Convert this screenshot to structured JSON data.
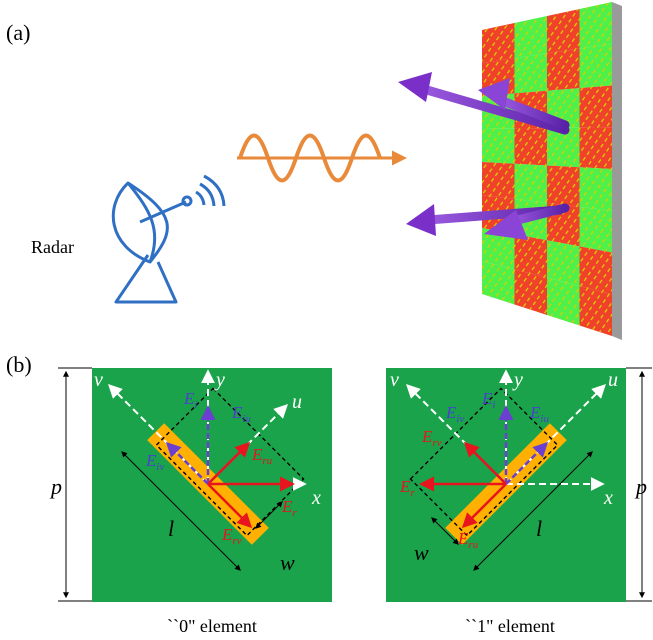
{
  "figure": {
    "panel_a_label": "(a)",
    "panel_b_label": "(b)",
    "radar_label": "Radar",
    "colors": {
      "green": "#1aa34a",
      "light_green": "#4ff04a",
      "red": "#f0422a",
      "orange": "#ffb000",
      "wave": "#e88a3a",
      "arrow_purple": "#7b2fc9",
      "radar_blue": "#2f6fc4",
      "field_red": "#e8141e",
      "field_purple": "#6b3fd0"
    },
    "icons": [
      "radar-dish-icon",
      "wave-icon",
      "reflected-beam-icon"
    ]
  },
  "element0": {
    "caption": "``0\" element",
    "labels": {
      "v": "v",
      "y": "y",
      "u": "u",
      "x": "x",
      "p": "p",
      "l": "l",
      "w": "w",
      "Ei": "E",
      "Ei_sub": "i",
      "Eiu": "E",
      "Eiu_sub": "iu",
      "Eiv": "E",
      "Eiv_sub": "iv",
      "Eru": "E",
      "Eru_sub": "ru",
      "Erv": "E",
      "Erv_sub": "rv",
      "Er": "E",
      "Er_sub": "r"
    }
  },
  "element1": {
    "caption": "``1\" element",
    "labels": {
      "v": "v",
      "y": "y",
      "u": "u",
      "x": "x",
      "p": "p",
      "l": "l",
      "w": "w",
      "Ei": "E",
      "Ei_sub": "i",
      "Eiu": "E",
      "Eiu_sub": "iu",
      "Eiv": "E",
      "Eiv_sub": "iv",
      "Eru": "E",
      "Eru_sub": "ru",
      "Erv": "E",
      "Erv_sub": "rv",
      "Er": "E",
      "Er_sub": "r"
    }
  }
}
